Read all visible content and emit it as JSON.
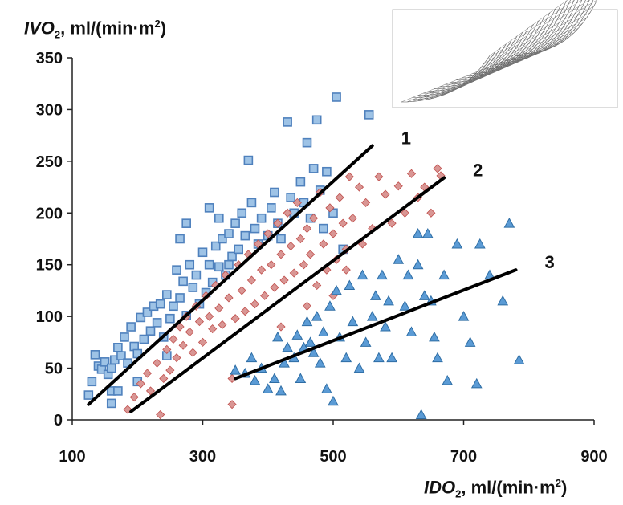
{
  "chart_data": {
    "type": "scatter",
    "xlabel": {
      "main": "IDO",
      "sub": "2",
      "units": ", ml/(min·m",
      "sup": "2",
      "close": ")"
    },
    "ylabel": {
      "main": "IVO",
      "sub": "2",
      "units": ", ml/(min·m",
      "sup": "2",
      "close": ")"
    },
    "xlim": [
      100,
      900
    ],
    "ylim": [
      0,
      350
    ],
    "x_ticks": [
      100,
      300,
      500,
      700,
      900
    ],
    "y_ticks": [
      0,
      50,
      100,
      150,
      200,
      250,
      300,
      350
    ],
    "grid": false,
    "series": [
      {
        "marker": "square",
        "color": "#4f81bd",
        "fill": "#9ec3e6",
        "points": [
          [
            125,
            24
          ],
          [
            130,
            37
          ],
          [
            135,
            63
          ],
          [
            140,
            52
          ],
          [
            145,
            49
          ],
          [
            150,
            56
          ],
          [
            155,
            44
          ],
          [
            160,
            28
          ],
          [
            160,
            50
          ],
          [
            165,
            58
          ],
          [
            170,
            70
          ],
          [
            175,
            62
          ],
          [
            180,
            80
          ],
          [
            185,
            55
          ],
          [
            190,
            90
          ],
          [
            195,
            71
          ],
          [
            200,
            64
          ],
          [
            205,
            99
          ],
          [
            210,
            78
          ],
          [
            215,
            104
          ],
          [
            220,
            86
          ],
          [
            225,
            110
          ],
          [
            230,
            94
          ],
          [
            235,
            112
          ],
          [
            240,
            80
          ],
          [
            245,
            121
          ],
          [
            250,
            98
          ],
          [
            255,
            110
          ],
          [
            260,
            145
          ],
          [
            265,
            118
          ],
          [
            270,
            134
          ],
          [
            275,
            101
          ],
          [
            280,
            150
          ],
          [
            285,
            128
          ],
          [
            290,
            140
          ],
          [
            295,
            112
          ],
          [
            300,
            162
          ],
          [
            305,
            123
          ],
          [
            310,
            150
          ],
          [
            315,
            133
          ],
          [
            320,
            168
          ],
          [
            325,
            148
          ],
          [
            330,
            175
          ],
          [
            335,
            140
          ],
          [
            340,
            180
          ],
          [
            345,
            158
          ],
          [
            350,
            190
          ],
          [
            355,
            165
          ],
          [
            360,
            200
          ],
          [
            365,
            178
          ],
          [
            370,
            251
          ],
          [
            375,
            210
          ],
          [
            380,
            185
          ],
          [
            385,
            170
          ],
          [
            390,
            195
          ],
          [
            400,
            178
          ],
          [
            405,
            205
          ],
          [
            410,
            220
          ],
          [
            415,
            190
          ],
          [
            420,
            175
          ],
          [
            430,
            288
          ],
          [
            435,
            215
          ],
          [
            440,
            200
          ],
          [
            450,
            230
          ],
          [
            455,
            210
          ],
          [
            460,
            268
          ],
          [
            465,
            195
          ],
          [
            470,
            243
          ],
          [
            475,
            290
          ],
          [
            480,
            222
          ],
          [
            485,
            185
          ],
          [
            490,
            240
          ],
          [
            500,
            200
          ],
          [
            505,
            312
          ],
          [
            515,
            165
          ],
          [
            555,
            295
          ],
          [
            275,
            190
          ],
          [
            245,
            62
          ],
          [
            200,
            37
          ],
          [
            170,
            28
          ],
          [
            160,
            16
          ],
          [
            310,
            205
          ],
          [
            325,
            195
          ],
          [
            265,
            175
          ],
          [
            340,
            150
          ]
        ]
      },
      {
        "marker": "diamond",
        "color": "#c0504d",
        "fill": "#d99694",
        "points": [
          [
            185,
            10
          ],
          [
            195,
            22
          ],
          [
            205,
            35
          ],
          [
            215,
            45
          ],
          [
            220,
            28
          ],
          [
            230,
            55
          ],
          [
            235,
            5
          ],
          [
            240,
            40
          ],
          [
            245,
            68
          ],
          [
            250,
            48
          ],
          [
            255,
            78
          ],
          [
            260,
            60
          ],
          [
            265,
            90
          ],
          [
            270,
            72
          ],
          [
            275,
            100
          ],
          [
            280,
            85
          ],
          [
            285,
            65
          ],
          [
            290,
            110
          ],
          [
            295,
            95
          ],
          [
            300,
            75
          ],
          [
            305,
            120
          ],
          [
            310,
            100
          ],
          [
            315,
            88
          ],
          [
            320,
            130
          ],
          [
            325,
            108
          ],
          [
            330,
            92
          ],
          [
            335,
            140
          ],
          [
            340,
            118
          ],
          [
            345,
            15
          ],
          [
            350,
            98
          ],
          [
            355,
            150
          ],
          [
            360,
            125
          ],
          [
            365,
            105
          ],
          [
            370,
            160
          ],
          [
            375,
            135
          ],
          [
            380,
            112
          ],
          [
            385,
            170
          ],
          [
            390,
            145
          ],
          [
            395,
            120
          ],
          [
            400,
            180
          ],
          [
            405,
            150
          ],
          [
            410,
            128
          ],
          [
            415,
            190
          ],
          [
            420,
            160
          ],
          [
            425,
            135
          ],
          [
            430,
            200
          ],
          [
            435,
            168
          ],
          [
            440,
            142
          ],
          [
            445,
            210
          ],
          [
            450,
            175
          ],
          [
            455,
            150
          ],
          [
            460,
            185
          ],
          [
            465,
            160
          ],
          [
            470,
            195
          ],
          [
            475,
            130
          ],
          [
            480,
            220
          ],
          [
            485,
            170
          ],
          [
            490,
            145
          ],
          [
            495,
            205
          ],
          [
            500,
            180
          ],
          [
            505,
            155
          ],
          [
            510,
            215
          ],
          [
            515,
            190
          ],
          [
            520,
            165
          ],
          [
            525,
            235
          ],
          [
            530,
            195
          ],
          [
            540,
            225
          ],
          [
            545,
            170
          ],
          [
            550,
            210
          ],
          [
            560,
            185
          ],
          [
            570,
            235
          ],
          [
            580,
            218
          ],
          [
            590,
            190
          ],
          [
            600,
            226
          ],
          [
            610,
            200
          ],
          [
            620,
            238
          ],
          [
            630,
            215
          ],
          [
            640,
            225
          ],
          [
            650,
            200
          ],
          [
            660,
            243
          ],
          [
            665,
            236
          ],
          [
            345,
            40
          ],
          [
            420,
            90
          ],
          [
            460,
            110
          ],
          [
            500,
            120
          ],
          [
            520,
            145
          ]
        ]
      },
      {
        "marker": "triangle",
        "color": "#2e6da4",
        "fill": "#5b9bd5",
        "points": [
          [
            350,
            48
          ],
          [
            365,
            45
          ],
          [
            375,
            60
          ],
          [
            380,
            38
          ],
          [
            390,
            50
          ],
          [
            400,
            30
          ],
          [
            410,
            40
          ],
          [
            415,
            80
          ],
          [
            420,
            28
          ],
          [
            425,
            55
          ],
          [
            430,
            70
          ],
          [
            440,
            60
          ],
          [
            445,
            82
          ],
          [
            450,
            40
          ],
          [
            455,
            70
          ],
          [
            460,
            95
          ],
          [
            465,
            75
          ],
          [
            470,
            65
          ],
          [
            475,
            100
          ],
          [
            480,
            55
          ],
          [
            485,
            85
          ],
          [
            490,
            30
          ],
          [
            495,
            110
          ],
          [
            500,
            18
          ],
          [
            505,
            125
          ],
          [
            510,
            80
          ],
          [
            520,
            60
          ],
          [
            525,
            130
          ],
          [
            530,
            95
          ],
          [
            540,
            50
          ],
          [
            545,
            140
          ],
          [
            550,
            75
          ],
          [
            560,
            100
          ],
          [
            565,
            120
          ],
          [
            570,
            60
          ],
          [
            575,
            140
          ],
          [
            580,
            90
          ],
          [
            585,
            115
          ],
          [
            590,
            60
          ],
          [
            600,
            155
          ],
          [
            610,
            110
          ],
          [
            615,
            140
          ],
          [
            620,
            85
          ],
          [
            630,
            180
          ],
          [
            635,
            5
          ],
          [
            640,
            120
          ],
          [
            650,
            115
          ],
          [
            655,
            80
          ],
          [
            660,
            60
          ],
          [
            670,
            140
          ],
          [
            675,
            38
          ],
          [
            690,
            170
          ],
          [
            700,
            100
          ],
          [
            710,
            75
          ],
          [
            720,
            35
          ],
          [
            725,
            170
          ],
          [
            740,
            140
          ],
          [
            760,
            115
          ],
          [
            770,
            190
          ],
          [
            785,
            58
          ],
          [
            630,
            150
          ],
          [
            645,
            180
          ]
        ]
      }
    ],
    "lines": [
      {
        "label": "1",
        "x": [
          125,
          560
        ],
        "y": [
          15,
          265
        ]
      },
      {
        "label": "2",
        "x": [
          190,
          670
        ],
        "y": [
          8,
          234
        ]
      },
      {
        "label": "3",
        "x": [
          350,
          780
        ],
        "y": [
          40,
          145
        ]
      }
    ],
    "inset": {
      "shown": true
    }
  }
}
